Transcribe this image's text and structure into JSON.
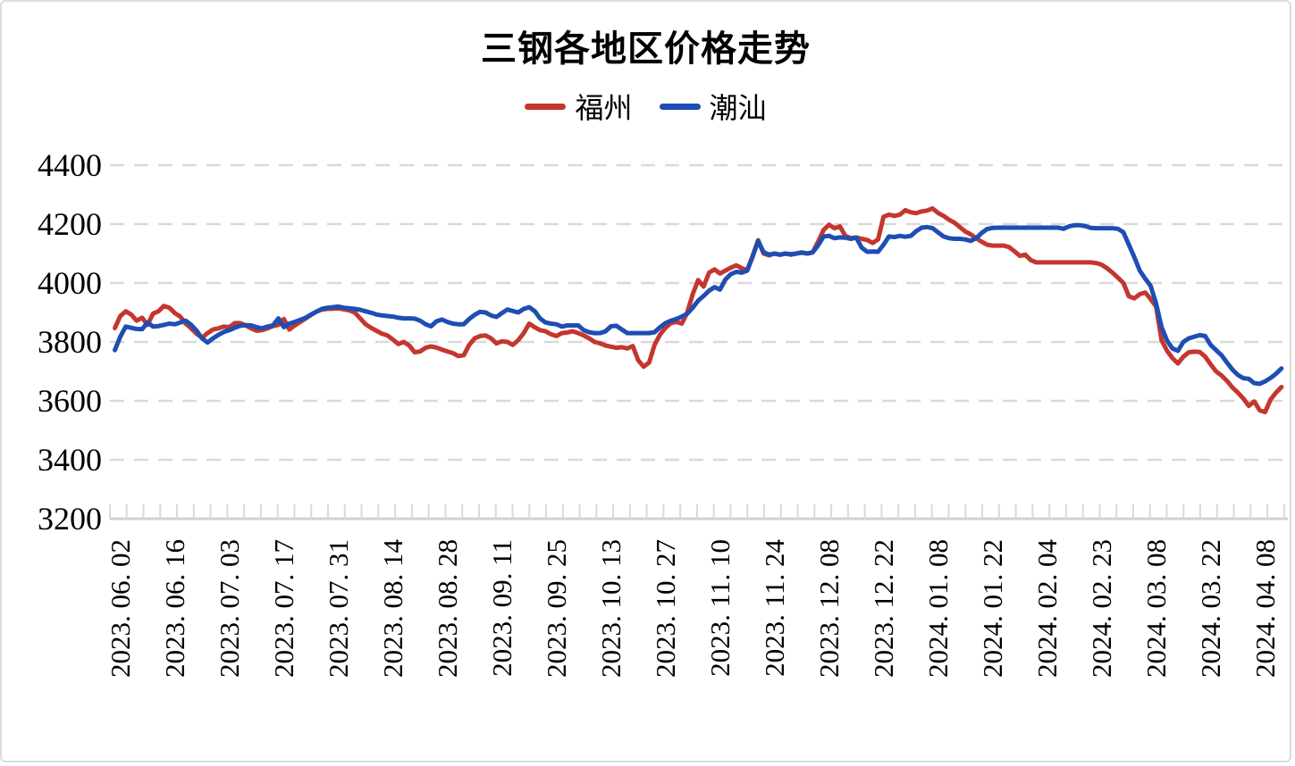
{
  "chart_data": {
    "type": "line",
    "title": "三钢各地区价格走势",
    "legend_position": "top",
    "grid": "horizontal-dashed",
    "y_axis": {
      "min": 3200,
      "max": 4400,
      "step": 200,
      "ticks": [
        4400,
        4200,
        4000,
        3800,
        3600,
        3400,
        3200
      ]
    },
    "x_axis": {
      "labels": [
        "2023. 06. 02",
        "2023. 06. 16",
        "2023. 07. 03",
        "2023. 07. 17",
        "2023. 07. 31",
        "2023. 08. 14",
        "2023. 08. 28",
        "2023. 09. 11",
        "2023. 09. 25",
        "2023. 10. 13",
        "2023. 10. 27",
        "2023. 11. 10",
        "2023. 11. 24",
        "2023. 12. 08",
        "2023. 12. 22",
        "2024. 01. 08",
        "2024. 01. 22",
        "2024. 02. 04",
        "2024. 02. 23",
        "2024. 03. 08",
        "2024. 03. 22",
        "2024. 04. 08"
      ],
      "label_point_indices": [
        1,
        11,
        21,
        31,
        41,
        51,
        61,
        71,
        81,
        91,
        101,
        111,
        121,
        131,
        141,
        151,
        161,
        171,
        181,
        191,
        201,
        211
      ]
    },
    "colors": {
      "fuzhou": "#c4362e",
      "chaoshan": "#1e4eb3",
      "grid": "#d9d9d9",
      "axis": "#d1d1d1"
    },
    "series": [
      {
        "id": "fuzhou",
        "name": "福州",
        "color": "#c4362e",
        "values": [
          3847,
          3888,
          3904,
          3893,
          3872,
          3882,
          3858,
          3896,
          3904,
          3922,
          3916,
          3898,
          3886,
          3862,
          3846,
          3828,
          3814,
          3830,
          3842,
          3846,
          3852,
          3850,
          3864,
          3864,
          3856,
          3846,
          3838,
          3840,
          3846,
          3854,
          3858,
          3878,
          3842,
          3856,
          3868,
          3880,
          3892,
          3903,
          3910,
          3912,
          3913,
          3914,
          3911,
          3907,
          3900,
          3880,
          3860,
          3848,
          3838,
          3828,
          3822,
          3808,
          3793,
          3800,
          3788,
          3765,
          3768,
          3780,
          3785,
          3781,
          3774,
          3768,
          3762,
          3752,
          3755,
          3790,
          3812,
          3820,
          3822,
          3812,
          3795,
          3802,
          3800,
          3790,
          3806,
          3830,
          3862,
          3850,
          3840,
          3836,
          3826,
          3820,
          3830,
          3832,
          3836,
          3830,
          3822,
          3812,
          3800,
          3795,
          3788,
          3784,
          3780,
          3782,
          3778,
          3786,
          3738,
          3716,
          3730,
          3790,
          3825,
          3848,
          3864,
          3868,
          3862,
          3900,
          3962,
          4010,
          3988,
          4035,
          4046,
          4032,
          4042,
          4052,
          4060,
          4050,
          4044,
          4092,
          4145,
          4100,
          4094,
          4100,
          4096,
          4100,
          4096,
          4100,
          4104,
          4100,
          4104,
          4140,
          4180,
          4198,
          4186,
          4192,
          4160,
          4152,
          4155,
          4150,
          4146,
          4136,
          4148,
          4225,
          4232,
          4228,
          4232,
          4247,
          4240,
          4237,
          4243,
          4246,
          4253,
          4238,
          4228,
          4215,
          4205,
          4190,
          4175,
          4165,
          4152,
          4140,
          4130,
          4127,
          4127,
          4127,
          4122,
          4108,
          4092,
          4096,
          4078,
          4070,
          4070,
          4070,
          4070,
          4070,
          4070,
          4070,
          4070,
          4070,
          4070,
          4070,
          4068,
          4062,
          4050,
          4035,
          4018,
          4000,
          3955,
          3948,
          3962,
          3968,
          3945,
          3920,
          3806,
          3770,
          3745,
          3727,
          3750,
          3765,
          3767,
          3766,
          3750,
          3724,
          3700,
          3686,
          3668,
          3645,
          3628,
          3608,
          3583,
          3598,
          3568,
          3562,
          3605,
          3628,
          3647
        ]
      },
      {
        "id": "chaoshan",
        "name": "潮汕",
        "color": "#1e4eb3",
        "values": [
          3772,
          3818,
          3852,
          3848,
          3844,
          3843,
          3866,
          3852,
          3854,
          3858,
          3862,
          3860,
          3866,
          3872,
          3858,
          3838,
          3812,
          3798,
          3812,
          3824,
          3834,
          3840,
          3848,
          3855,
          3857,
          3856,
          3850,
          3846,
          3852,
          3856,
          3880,
          3850,
          3862,
          3868,
          3875,
          3882,
          3893,
          3903,
          3912,
          3916,
          3918,
          3920,
          3916,
          3914,
          3912,
          3909,
          3904,
          3899,
          3893,
          3890,
          3888,
          3886,
          3882,
          3880,
          3880,
          3879,
          3872,
          3860,
          3853,
          3870,
          3876,
          3868,
          3862,
          3860,
          3860,
          3878,
          3892,
          3902,
          3900,
          3890,
          3885,
          3898,
          3910,
          3905,
          3900,
          3912,
          3918,
          3905,
          3880,
          3866,
          3862,
          3860,
          3852,
          3856,
          3856,
          3856,
          3840,
          3833,
          3830,
          3830,
          3836,
          3853,
          3855,
          3842,
          3830,
          3830,
          3830,
          3830,
          3830,
          3833,
          3850,
          3864,
          3872,
          3878,
          3886,
          3896,
          3916,
          3940,
          3956,
          3974,
          3986,
          3978,
          4012,
          4030,
          4038,
          4035,
          4042,
          4090,
          4142,
          4105,
          4096,
          4100,
          4096,
          4100,
          4098,
          4100,
          4103,
          4100,
          4104,
          4128,
          4158,
          4160,
          4152,
          4155,
          4154,
          4150,
          4154,
          4120,
          4106,
          4107,
          4106,
          4130,
          4158,
          4156,
          4160,
          4157,
          4160,
          4176,
          4188,
          4190,
          4186,
          4172,
          4158,
          4152,
          4150,
          4150,
          4148,
          4143,
          4152,
          4170,
          4183,
          4187,
          4188,
          4188,
          4188,
          4188,
          4188,
          4188,
          4188,
          4188,
          4188,
          4188,
          4188,
          4188,
          4184,
          4192,
          4196,
          4196,
          4193,
          4187,
          4186,
          4186,
          4186,
          4186,
          4184,
          4172,
          4130,
          4088,
          4042,
          4015,
          3990,
          3930,
          3850,
          3805,
          3778,
          3770,
          3800,
          3812,
          3818,
          3823,
          3820,
          3790,
          3772,
          3755,
          3730,
          3706,
          3688,
          3677,
          3675,
          3660,
          3658,
          3666,
          3678,
          3692,
          3710
        ]
      }
    ]
  }
}
